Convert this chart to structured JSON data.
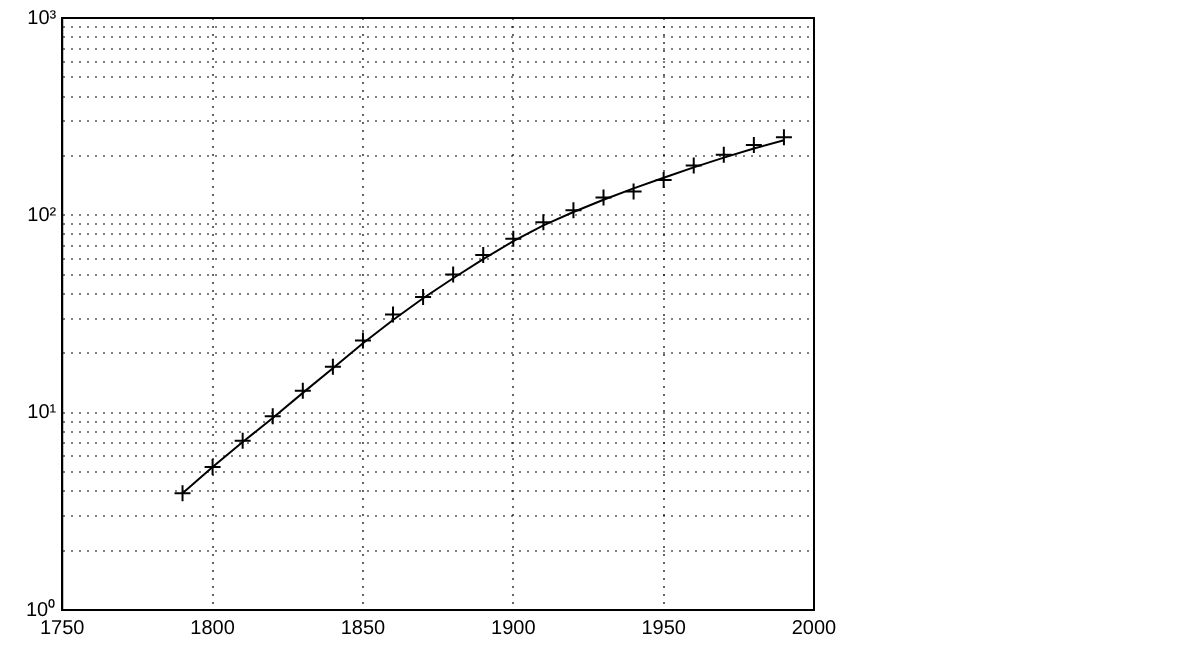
{
  "chart_data": {
    "type": "scatter",
    "log": "y",
    "grid": true,
    "legend": false,
    "xlim": [
      1750,
      2000
    ],
    "xticks": [
      1750,
      1800,
      1850,
      1900,
      1950,
      2000
    ],
    "ylim": [
      1,
      1000
    ],
    "yticks": [
      {
        "value": 1,
        "label": "10⁰"
      },
      {
        "value": 2,
        "label": null
      },
      {
        "value": 3,
        "label": null
      },
      {
        "value": 4,
        "label": null
      },
      {
        "value": 5,
        "label": null
      },
      {
        "value": 6,
        "label": null
      },
      {
        "value": 7,
        "label": null
      },
      {
        "value": 8,
        "label": null
      },
      {
        "value": 9,
        "label": null
      },
      {
        "value": 10,
        "label": "10¹"
      },
      {
        "value": 20,
        "label": null
      },
      {
        "value": 30,
        "label": null
      },
      {
        "value": 40,
        "label": null
      },
      {
        "value": 50,
        "label": null
      },
      {
        "value": 60,
        "label": null
      },
      {
        "value": 70,
        "label": null
      },
      {
        "value": 80,
        "label": null
      },
      {
        "value": 90,
        "label": null
      },
      {
        "value": 100,
        "label": "10²"
      },
      {
        "value": 200,
        "label": null
      },
      {
        "value": 300,
        "label": null
      },
      {
        "value": 400,
        "label": null
      },
      {
        "value": 500,
        "label": null
      },
      {
        "value": 600,
        "label": null
      },
      {
        "value": 700,
        "label": null
      },
      {
        "value": 800,
        "label": null
      },
      {
        "value": 900,
        "label": null
      },
      {
        "value": 1000,
        "label": "10³"
      }
    ],
    "series": [
      {
        "marker": "cross",
        "color": "#000000",
        "x": [
          1790,
          1800,
          1810,
          1820,
          1830,
          1840,
          1850,
          1860,
          1870,
          1880,
          1890,
          1900,
          1910,
          1920,
          1930,
          1940,
          1950,
          1960,
          1970,
          1980,
          1990
        ],
        "values": [
          3.9,
          5.3,
          7.2,
          9.6,
          12.9,
          17.1,
          23.2,
          31.4,
          38.6,
          50.2,
          63,
          76.2,
          92.2,
          106,
          123,
          132,
          151,
          179,
          203,
          227,
          249
        ]
      },
      {
        "type": "line",
        "marker": "none",
        "line_style": "solid",
        "color": "#000000",
        "x": [
          1790,
          1800,
          1810,
          1820,
          1830,
          1840,
          1850,
          1860,
          1870,
          1880,
          1890,
          1900,
          1910,
          1920,
          1930,
          1940,
          1950,
          1960,
          1970,
          1980,
          1990
        ],
        "values": [
          3.9,
          5.3,
          7.1,
          9.4,
          12.6,
          16.8,
          22.5,
          29.5,
          38,
          48,
          60,
          74,
          89,
          104,
          120,
          137,
          155,
          175,
          196,
          218,
          240
        ]
      }
    ]
  }
}
